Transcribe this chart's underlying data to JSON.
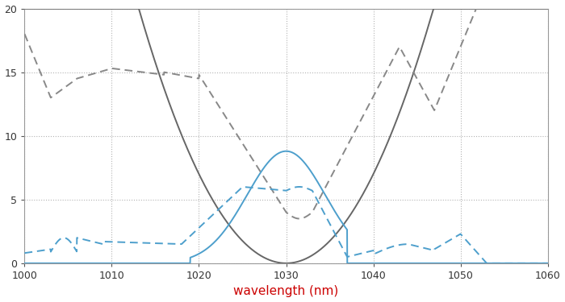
{
  "xlim": [
    1000,
    1060
  ],
  "ylim": [
    0,
    20
  ],
  "xlabel": "wavelength (nm)",
  "xlabel_color": "#cc0000",
  "grid_color": "#aaaaaa",
  "bg_color": "#ffffff",
  "xticks": [
    1000,
    1010,
    1020,
    1030,
    1040,
    1050,
    1060
  ],
  "yticks": [
    0,
    5,
    10,
    15,
    20
  ],
  "gray_solid_color": "#666666",
  "gray_dashed_color": "#888888",
  "blue_solid_color": "#4d9fcc",
  "blue_dashed_color": "#4d9fcc"
}
